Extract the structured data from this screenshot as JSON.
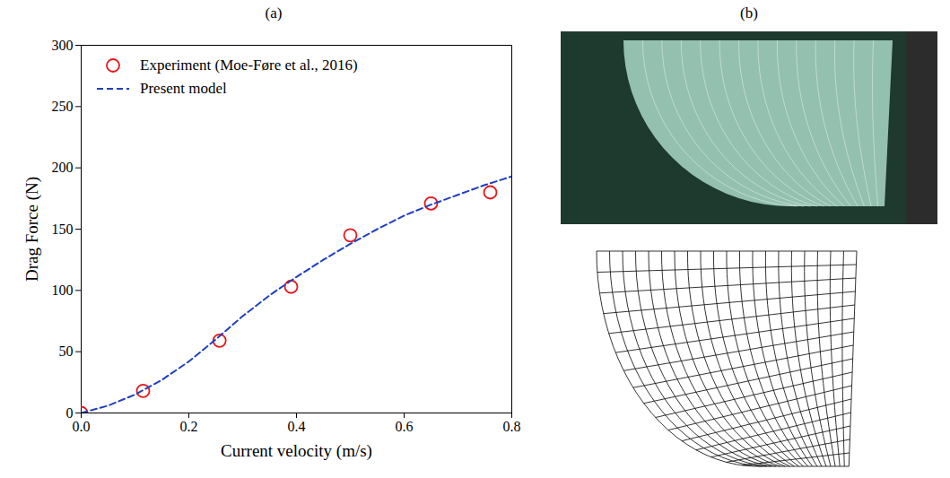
{
  "chart_data": {
    "type": "line",
    "title": "(a)",
    "x_label": "Current velocity (m/s)",
    "y_label": "Drag Force (N)",
    "xlim": [
      0,
      0.8
    ],
    "xticks": [
      {
        "value": 0,
        "label": "0.0"
      },
      {
        "value": 0.2,
        "label": "0.2"
      },
      {
        "value": 0.4,
        "label": "0.4"
      },
      {
        "value": 0.6,
        "label": "0.6"
      },
      {
        "value": 0.8,
        "label": "0.8"
      }
    ],
    "ylim": [
      0,
      300
    ],
    "yticks": [
      0,
      50,
      100,
      150,
      200,
      250,
      300
    ],
    "grid": false,
    "legend": "upper left",
    "series": [
      {
        "name": "Experiment (Moe-Føre et al., 2016)",
        "type": "scatter",
        "marker": "circle",
        "color": "#e8161b",
        "x": [
          0,
          0.115,
          0.257,
          0.39,
          0.5,
          0.65,
          0.76
        ],
        "values": [
          0,
          18,
          59,
          103,
          145,
          171,
          180
        ]
      },
      {
        "name": "Present model",
        "type": "line",
        "line_style": "dashed",
        "color": "#1f3fbf",
        "x": [
          0,
          0.05,
          0.1,
          0.15,
          0.2,
          0.25,
          0.3,
          0.35,
          0.4,
          0.45,
          0.5,
          0.55,
          0.6,
          0.65,
          0.7,
          0.75,
          0.8
        ],
        "values": [
          0,
          6,
          15,
          27,
          42,
          60,
          79,
          96,
          111,
          125,
          138,
          150,
          161,
          170,
          178,
          186,
          193
        ]
      }
    ]
  },
  "panel_b": {
    "title": "(b)"
  }
}
